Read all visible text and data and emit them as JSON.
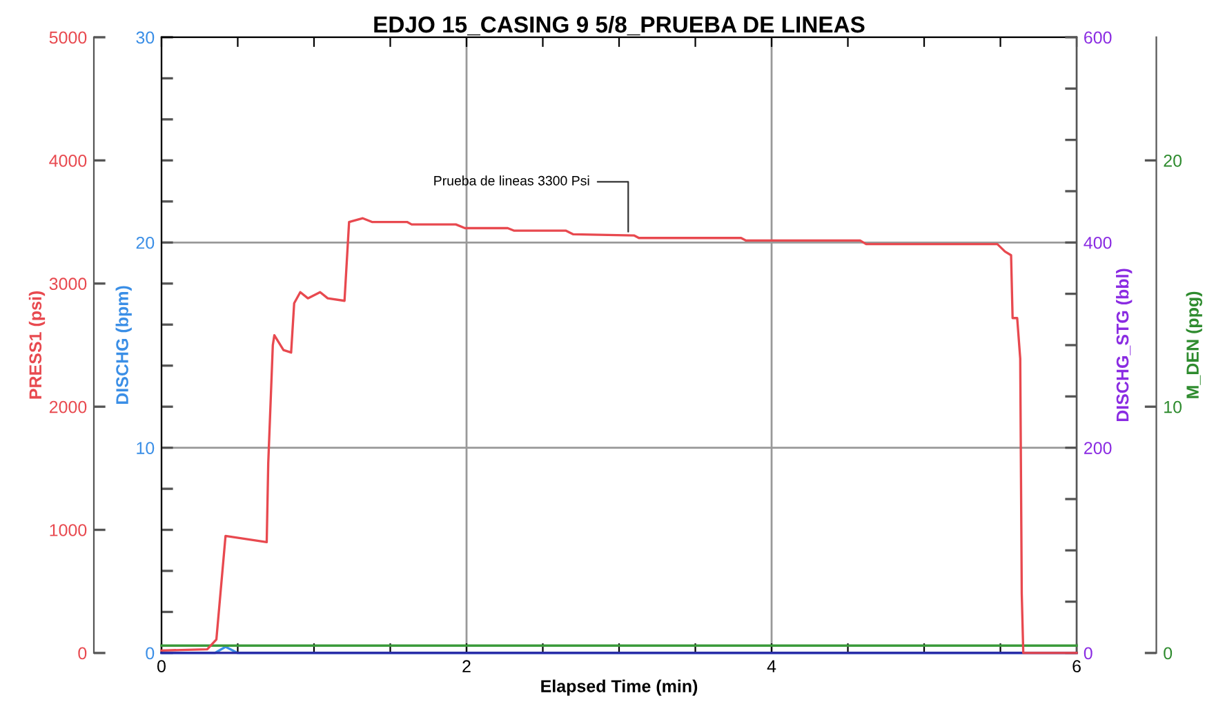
{
  "chart_data": [
    {
      "type": "line",
      "title": "EDJO 15_CASING 9 5/8_PRUEBA DE LINEAS",
      "xlabel": "Elapsed Time (min)",
      "ylabel": "PRESS1 (psi)",
      "y2label": "DISCHG (bpm)",
      "y3label": "DISCHG_STG (bbl)",
      "xlim": [
        0,
        6
      ],
      "xticks": [
        0,
        {
          "value": 0.5,
          "label": null
        },
        {
          "value": 1,
          "label": null
        },
        {
          "value": 1.5,
          "label": null
        },
        2,
        {
          "value": 2.5,
          "label": null
        },
        {
          "value": 3,
          "label": null
        },
        {
          "value": 3.5,
          "label": null
        },
        4,
        {
          "value": 4.5,
          "label": null
        },
        {
          "value": 5,
          "label": null
        },
        {
          "value": 5.5,
          "label": null
        },
        6
      ],
      "ylim": [
        0,
        5000
      ],
      "yticks": [
        0,
        1000,
        2000,
        3000,
        4000,
        5000
      ],
      "y2lim": [
        0,
        30
      ],
      "y2ticks": [
        0,
        {
          "value": 2,
          "label": null
        },
        {
          "value": 4,
          "label": null
        },
        {
          "value": 6,
          "label": null
        },
        {
          "value": 8,
          "label": null
        },
        10,
        {
          "value": 12,
          "label": null
        },
        {
          "value": 14,
          "label": null
        },
        {
          "value": 16,
          "label": null
        },
        {
          "value": 18,
          "label": null
        },
        20,
        {
          "value": 22,
          "label": null
        },
        {
          "value": 24,
          "label": null
        },
        {
          "value": 26,
          "label": null
        },
        {
          "value": 28,
          "label": null
        },
        30
      ],
      "y3lim": [
        0,
        600
      ],
      "y3ticks": [
        0,
        {
          "value": 50,
          "label": null
        },
        {
          "value": 100,
          "label": null
        },
        {
          "value": 150,
          "label": null
        },
        200,
        {
          "value": 250,
          "label": null
        },
        {
          "value": 300,
          "label": null
        },
        {
          "value": 350,
          "label": null
        },
        400,
        {
          "value": 450,
          "label": null
        },
        {
          "value": 500,
          "label": null
        },
        {
          "value": 550,
          "label": null
        },
        600
      ],
      "grid": true,
      "marker": "none",
      "line_style": "solid",
      "series": [
        {
          "color": "#e8494f",
          "x": [
            0,
            0.3,
            0.36,
            0.42,
            0.69,
            0.7,
            0.73,
            0.74,
            0.8,
            0.85,
            0.87,
            0.91,
            0.96,
            1.04,
            1.09,
            1.2,
            1.23,
            1.32,
            1.38,
            1.61,
            1.64,
            1.93,
            1.99,
            2.27,
            2.31,
            2.65,
            2.7,
            3.1,
            3.13,
            3.8,
            3.83,
            4.58,
            4.62,
            5.48,
            5.53,
            5.57,
            5.58,
            5.61,
            5.63,
            5.64,
            5.65,
            6
          ],
          "values": [
            20,
            30,
            110,
            950,
            900,
            1540,
            2500,
            2580,
            2460,
            2440,
            2840,
            2930,
            2880,
            2930,
            2880,
            2860,
            3500,
            3530,
            3500,
            3500,
            3480,
            3480,
            3450,
            3450,
            3430,
            3430,
            3400,
            3390,
            3370,
            3370,
            3350,
            3350,
            3320,
            3320,
            3260,
            3230,
            2720,
            2720,
            2390,
            480,
            0,
            0
          ]
        },
        {
          "color": "#3a8ee6",
          "axis": "y2",
          "x": [
            0,
            0.35,
            0.42,
            0.5,
            6
          ],
          "values": [
            0,
            0,
            0.3,
            0,
            0
          ]
        },
        {
          "color": "#2a2aa8",
          "axis": "y3",
          "x": [
            0,
            6
          ],
          "values": [
            0,
            0
          ]
        }
      ],
      "annotations": [
        {
          "text": "Prueba de lineas 3300 Psi",
          "x": 3.06,
          "y": 3390
        }
      ]
    },
    {
      "type": "line",
      "ylabel": "M_DEN (ppg)",
      "xlim": [
        0,
        6
      ],
      "tick_labels": "y",
      "ylim": [
        0,
        25
      ],
      "yticks": [
        0,
        10,
        20
      ],
      "marker": "none",
      "line_style": "solid",
      "series": [
        {
          "color": "#3a9a3a",
          "x": [
            0,
            6
          ],
          "values": [
            0.3,
            0.3
          ]
        }
      ]
    }
  ]
}
